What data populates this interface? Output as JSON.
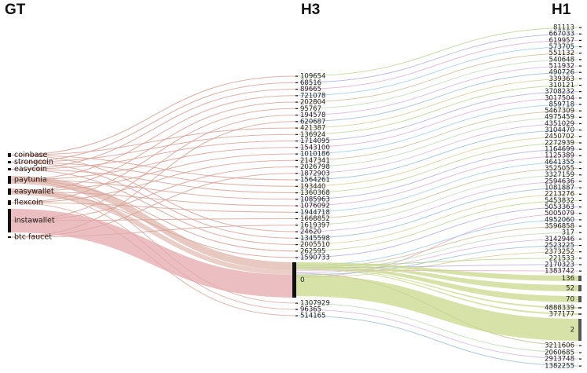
{
  "columns": {
    "gt": "GT",
    "h3": "H3",
    "h1": "H1"
  },
  "colors": {
    "gt_flow": "#d9a59a",
    "h3_flow": "#c9d88c",
    "node": "#111111"
  },
  "gt_nodes": [
    "coinbase",
    "strongcoin",
    "easycoin",
    "paytunia",
    "easywallet",
    "flexcoin",
    "instawallet",
    "btc faucet"
  ],
  "h3_nodes_top": [
    "109654",
    "68516",
    "89665",
    "721078",
    "202804",
    "95767",
    "194578",
    "620687",
    "421387",
    "136924",
    "1714095",
    "1543100",
    "1010186",
    "2147341",
    "2026798",
    "1872903",
    "1564261",
    "193440",
    "1360368",
    "1085963",
    "1076092",
    "1944718",
    "1668852",
    "1619397",
    "24620",
    "1345598",
    "2005510",
    "262595",
    "1590733"
  ],
  "h3_main": "0",
  "h3_nodes_bottom": [
    "1307929",
    "96365",
    "514165"
  ],
  "h1_nodes_top": [
    "81113",
    "667033",
    "619957",
    "573705",
    "551132",
    "540648",
    "511932",
    "490726",
    "339363",
    "310121",
    "3708232",
    "3017504",
    "859718",
    "5467309",
    "4975459",
    "4351029",
    "3104470",
    "2450702",
    "2272939",
    "1164699",
    "1125389",
    "4641355",
    "3525055",
    "3327159",
    "2594636",
    "1081887",
    "2213276",
    "5453832",
    "5053363",
    "5005079",
    "4952060",
    "3596858",
    "317",
    "3142946",
    "2523225",
    "2373252",
    "221533",
    "2170323",
    "1383742"
  ],
  "h1_nodes_mid": [
    "136",
    "52",
    "70",
    "4888339",
    "377177",
    "2"
  ],
  "h1_nodes_bottom": [
    "3211606",
    "2060685",
    "2913748",
    "1382255"
  ]
}
